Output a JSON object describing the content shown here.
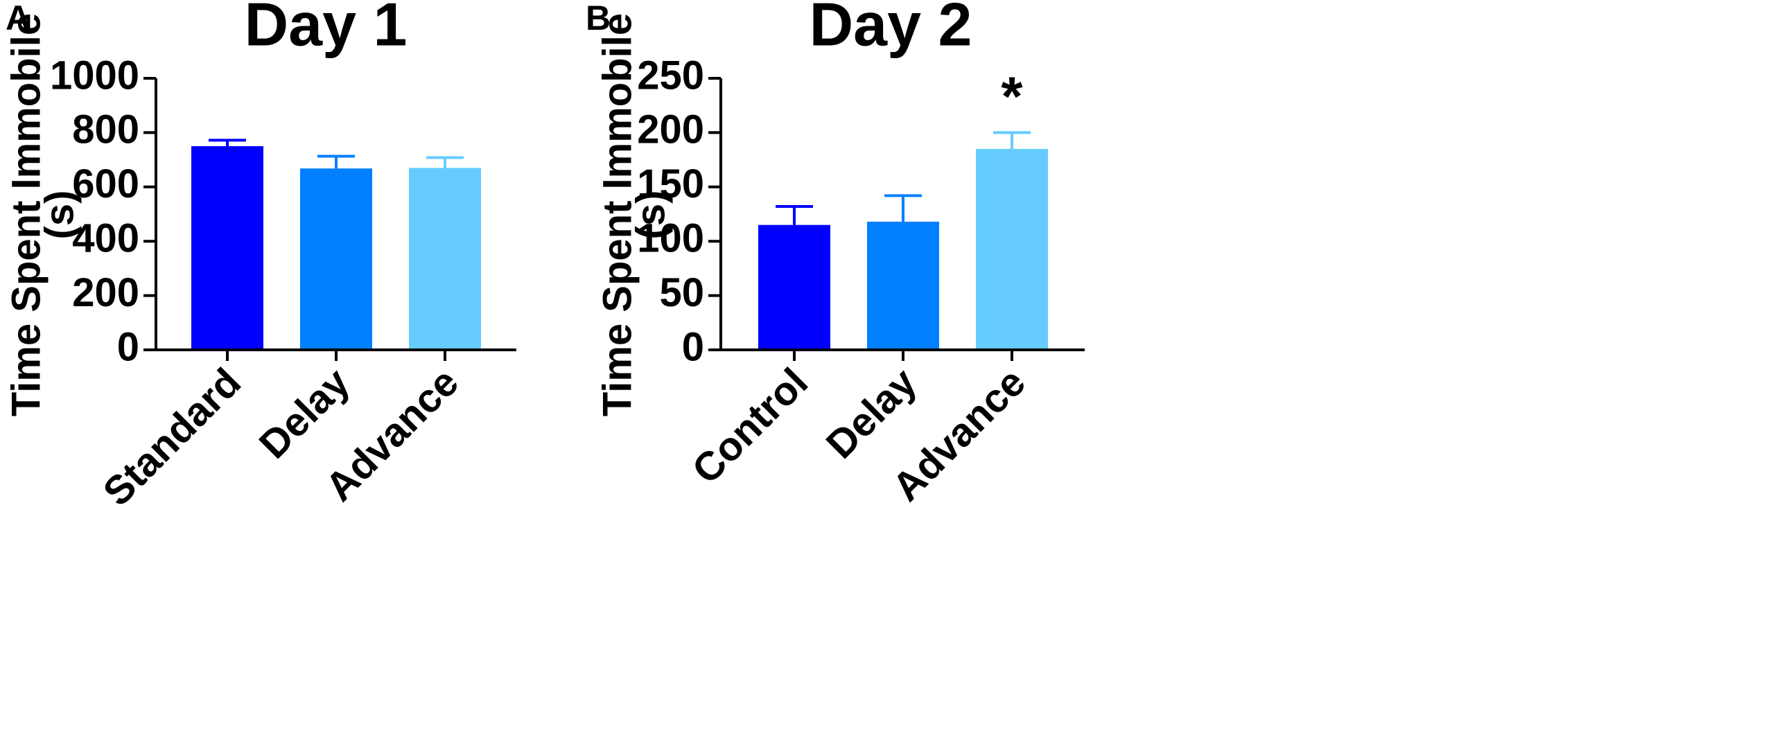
{
  "colors": {
    "dark_blue": "#0000FF",
    "mid_blue": "#0080FF",
    "light_blue": "#66CCFF",
    "axis": "#000000"
  },
  "chart_data": [
    {
      "type": "bar",
      "panel_label": "A",
      "title": "Day 1",
      "xlabel": "",
      "ylabel_line1": "Time Spent Immobile",
      "ylabel_line2": "(s)",
      "categories": [
        "Standard",
        "Delay",
        "Advance"
      ],
      "values": [
        750,
        668,
        670
      ],
      "errors": [
        22,
        45,
        38
      ],
      "bar_colors": [
        "#0000FF",
        "#0080FF",
        "#66CCFF"
      ],
      "ylim": [
        0,
        1000
      ],
      "yticks": [
        0,
        200,
        400,
        600,
        800,
        1000
      ],
      "annotations": [
        "",
        "",
        ""
      ],
      "grid": false
    },
    {
      "type": "bar",
      "panel_label": "B",
      "title": "Day 2",
      "xlabel": "",
      "ylabel_line1": "Time Spent Immobile",
      "ylabel_line2": "(s)",
      "categories": [
        "Control",
        "Delay",
        "Advance"
      ],
      "values": [
        115,
        118,
        185
      ],
      "errors": [
        17,
        24,
        15
      ],
      "bar_colors": [
        "#0000FF",
        "#0080FF",
        "#66CCFF"
      ],
      "ylim": [
        0,
        250
      ],
      "yticks": [
        0,
        50,
        100,
        150,
        200,
        250
      ],
      "annotations": [
        "",
        "",
        "*"
      ],
      "grid": false
    }
  ]
}
